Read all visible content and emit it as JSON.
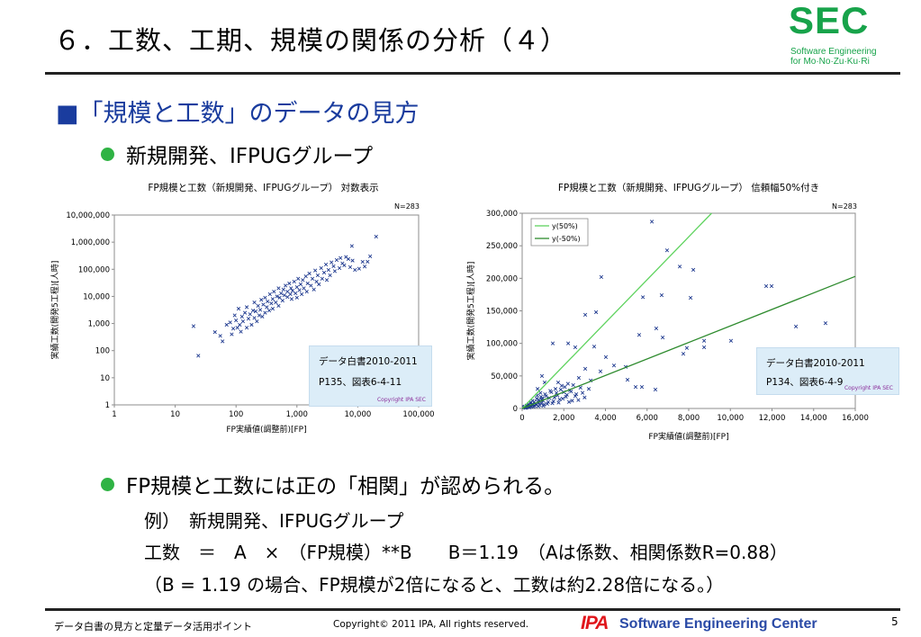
{
  "slide": {
    "title": "６．工数、工期、規模の関係の分析（４）",
    "logo": {
      "main": "SEC",
      "line1": "Software Engineering",
      "line2": "for Mo·No·Zu·Ku·Ri"
    },
    "heading_marker": "■",
    "heading": "「規模と工数」のデータの見方",
    "bullet1": "新規開発、IFPUGグループ",
    "bullet2": "FP規模と工数には正の「相関」が認められる。",
    "lines": [
      "例）　新規開発、IFPUGグループ",
      "工数　＝　A　×　（FP規模）**B　　B＝1.19　（Aは係数、相関係数R=0.88）",
      "（B = 1.19 の場合、FP規模が2倍になると、工数は約2.28倍になる。）"
    ]
  },
  "footer": {
    "left": "データ白書の見方と定量データ活用ポイント",
    "copyright": "Copyright© 2011 IPA, All rights reserved.",
    "ipa": "IPA",
    "center": "Software Engineering Center",
    "page": "5"
  },
  "colors": {
    "heading": "#1a3c9e",
    "bullet": "#2fb344",
    "sec_logo": "#17a34a",
    "ipa_logo": "#e0161c",
    "footer_brand": "#2a4aa6",
    "marker": "#1f3a8f",
    "line_upper": "#5fd35f",
    "line_lower": "#2e8b2e",
    "note_box": "#dcedf8"
  },
  "chart_data": [
    {
      "type": "scatter",
      "title": "FP規模と工数（新規開発、IFPUGグループ） 対数表示",
      "xlabel": "FP実績値(調整前)[FP]",
      "ylabel": "実績工数(開発5工程)[人時]",
      "annotation": "N=283",
      "x_scale": "log",
      "y_scale": "log",
      "xlim": [
        1,
        100000
      ],
      "ylim": [
        1,
        10000000
      ],
      "grid": false,
      "x_tick_labels": [
        "1",
        "10",
        "100",
        "1,000",
        "10,000",
        "100,000"
      ],
      "y_tick_labels": [
        "1",
        "10",
        "100",
        "1,000",
        "10,000",
        "100,000",
        "1,000,000",
        "10,000,000"
      ],
      "note": {
        "source": "データ白書2010-2011",
        "ref": "P135、図表6-4-11",
        "copyright": "Copyright IPA SEC"
      },
      "series": [
        {
          "type": "scatter",
          "points": [
            [
              20,
              800
            ],
            [
              24,
              65
            ],
            [
              45,
              480
            ],
            [
              55,
              350
            ],
            [
              60,
              220
            ],
            [
              70,
              900
            ],
            [
              80,
              1100
            ],
            [
              85,
              400
            ],
            [
              90,
              650
            ],
            [
              95,
              2000
            ],
            [
              100,
              1300
            ],
            [
              105,
              700
            ],
            [
              110,
              3500
            ],
            [
              115,
              900
            ],
            [
              120,
              500
            ],
            [
              125,
              1800
            ],
            [
              130,
              1200
            ],
            [
              140,
              2500
            ],
            [
              150,
              700
            ],
            [
              150,
              4000
            ],
            [
              160,
              1500
            ],
            [
              170,
              2200
            ],
            [
              180,
              900
            ],
            [
              190,
              3000
            ],
            [
              200,
              1600
            ],
            [
              200,
              6000
            ],
            [
              210,
              2800
            ],
            [
              220,
              1200
            ],
            [
              230,
              4500
            ],
            [
              240,
              2000
            ],
            [
              250,
              3200
            ],
            [
              260,
              7500
            ],
            [
              270,
              1800
            ],
            [
              280,
              5000
            ],
            [
              300,
              2500
            ],
            [
              300,
              9000
            ],
            [
              320,
              4000
            ],
            [
              330,
              6500
            ],
            [
              350,
              3000
            ],
            [
              360,
              12000
            ],
            [
              380,
              5500
            ],
            [
              400,
              8000
            ],
            [
              400,
              3500
            ],
            [
              420,
              15000
            ],
            [
              450,
              6000
            ],
            [
              470,
              10000
            ],
            [
              500,
              4500
            ],
            [
              500,
              20000
            ],
            [
              520,
              9000
            ],
            [
              550,
              13000
            ],
            [
              580,
              7000
            ],
            [
              600,
              18000
            ],
            [
              620,
              11000
            ],
            [
              650,
              25000
            ],
            [
              700,
              9500
            ],
            [
              700,
              15000
            ],
            [
              750,
              30000
            ],
            [
              780,
              12000
            ],
            [
              800,
              20000
            ],
            [
              820,
              8000
            ],
            [
              850,
              16000
            ],
            [
              900,
              35000
            ],
            [
              950,
              13000
            ],
            [
              1000,
              22000
            ],
            [
              1000,
              9000
            ],
            [
              1050,
              45000
            ],
            [
              1100,
              17000
            ],
            [
              1150,
              28000
            ],
            [
              1200,
              12000
            ],
            [
              1250,
              40000
            ],
            [
              1300,
              20000
            ],
            [
              1400,
              55000
            ],
            [
              1450,
              15000
            ],
            [
              1500,
              30000
            ],
            [
              1600,
              70000
            ],
            [
              1700,
              25000
            ],
            [
              1800,
              45000
            ],
            [
              1900,
              18000
            ],
            [
              2000,
              90000
            ],
            [
              2100,
              35000
            ],
            [
              2200,
              60000
            ],
            [
              2300,
              28000
            ],
            [
              2500,
              110000
            ],
            [
              2600,
              45000
            ],
            [
              2800,
              75000
            ],
            [
              3000,
              150000
            ],
            [
              3100,
              40000
            ],
            [
              3300,
              95000
            ],
            [
              3500,
              60000
            ],
            [
              3700,
              180000
            ],
            [
              4000,
              130000
            ],
            [
              4200,
              85000
            ],
            [
              4500,
              220000
            ],
            [
              5000,
              110000
            ],
            [
              5200,
              260000
            ],
            [
              5600,
              165000
            ],
            [
              6000,
              140000
            ],
            [
              6400,
              285000
            ],
            [
              7000,
              240000
            ],
            [
              7500,
              120000
            ],
            [
              8000,
              720000
            ],
            [
              8200,
              210000
            ],
            [
              9000,
              95000
            ],
            [
              10500,
              105000
            ],
            [
              12000,
              188000
            ],
            [
              13000,
              126000
            ],
            [
              14500,
              190000
            ],
            [
              16000,
              300000
            ],
            [
              20000,
              1600000
            ]
          ]
        }
      ]
    },
    {
      "type": "scatter",
      "title": "FP規模と工数（新規開発、IFPUGグループ） 信頼幅50%付き",
      "xlabel": "FP実績値(調整前)[FP]",
      "ylabel": "実績工数(開発5工程)[人時]",
      "annotation": "N=283",
      "x_scale": "linear",
      "y_scale": "linear",
      "xlim": [
        0,
        16000
      ],
      "ylim": [
        0,
        300000
      ],
      "grid": false,
      "legend": "top-left",
      "x_tick_labels": [
        "0",
        "2,000",
        "4,000",
        "6,000",
        "8,000",
        "10,000",
        "12,000",
        "14,000",
        "16,000"
      ],
      "y_tick_labels": [
        "0",
        "50,000",
        "100,000",
        "150,000",
        "200,000",
        "250,000",
        "300,000"
      ],
      "note": {
        "source": "データ白書2010-2011",
        "ref": "P134、図表6-4-9",
        "copyright": "Copyright IPA SEC"
      },
      "series": [
        {
          "type": "scatter",
          "points": [
            [
              6230,
              287000
            ],
            [
              6960,
              243000
            ],
            [
              7570,
              218000
            ],
            [
              8220,
              213000
            ],
            [
              3800,
              202000
            ],
            [
              5800,
              171000
            ],
            [
              6700,
              174000
            ],
            [
              8090,
              170000
            ],
            [
              11720,
              188000
            ],
            [
              11980,
              188000
            ],
            [
              3550,
              148000
            ],
            [
              3030,
              144000
            ],
            [
              13150,
              126000
            ],
            [
              14570,
              131000
            ],
            [
              6440,
              123000
            ],
            [
              5620,
              113000
            ],
            [
              6750,
              109000
            ],
            [
              10030,
              104000
            ],
            [
              8740,
              104000
            ],
            [
              7910,
              93000
            ],
            [
              7740,
              84000
            ],
            [
              8740,
              94000
            ],
            [
              1470,
              100000
            ],
            [
              2210,
              100000
            ],
            [
              2550,
              94000
            ],
            [
              3460,
              95000
            ],
            [
              4020,
              79000
            ],
            [
              3030,
              61000
            ],
            [
              4410,
              66000
            ],
            [
              4970,
              64000
            ],
            [
              5060,
              44000
            ],
            [
              5450,
              33000
            ],
            [
              5750,
              33000
            ],
            [
              6400,
              29000
            ],
            [
              3760,
              57000
            ],
            [
              2720,
              47000
            ],
            [
              3290,
              43000
            ],
            [
              1730,
              40000
            ],
            [
              950,
              50000
            ],
            [
              740,
              30000
            ],
            [
              1080,
              40000
            ],
            [
              100,
              2000
            ],
            [
              200,
              3500
            ],
            [
              300,
              5000
            ],
            [
              350,
              1500
            ],
            [
              400,
              8000
            ],
            [
              500,
              6000
            ],
            [
              500,
              12000
            ],
            [
              600,
              4000
            ],
            [
              700,
              15000
            ],
            [
              800,
              9000
            ],
            [
              900,
              18000
            ],
            [
              1000,
              12000
            ],
            [
              1100,
              22000
            ],
            [
              1200,
              7000
            ],
            [
              1300,
              16000
            ],
            [
              1400,
              25000
            ],
            [
              1500,
              11000
            ],
            [
              1600,
              30000
            ],
            [
              1700,
              20000
            ],
            [
              1800,
              14000
            ],
            [
              1900,
              35000
            ],
            [
              2000,
              25000
            ],
            [
              2100,
              18000
            ],
            [
              2200,
              38000
            ],
            [
              2300,
              28000
            ],
            [
              2400,
              12000
            ],
            [
              2600,
              22000
            ],
            [
              2800,
              32000
            ],
            [
              150,
              800
            ],
            [
              250,
              2500
            ],
            [
              450,
              3000
            ],
            [
              650,
              7000
            ],
            [
              750,
              10000
            ],
            [
              850,
              5000
            ],
            [
              950,
              14000
            ],
            [
              1050,
              6000
            ],
            [
              1150,
              19000
            ],
            [
              1250,
              10000
            ],
            [
              1350,
              27000
            ],
            [
              1450,
              8000
            ],
            [
              1550,
              17000
            ],
            [
              1650,
              24000
            ],
            [
              1750,
              9000
            ],
            [
              1850,
              29000
            ],
            [
              1950,
              15000
            ],
            [
              2050,
              33000
            ],
            [
              2150,
              21000
            ],
            [
              2250,
              10000
            ],
            [
              2350,
              26000
            ],
            [
              2450,
              36000
            ],
            [
              2550,
              19000
            ],
            [
              2700,
              13000
            ],
            [
              2900,
              24000
            ],
            [
              3000,
              17000
            ],
            [
              3200,
              30000
            ],
            [
              80,
              1500
            ],
            [
              120,
              3000
            ],
            [
              180,
              1000
            ],
            [
              220,
              4500
            ],
            [
              280,
              2000
            ],
            [
              320,
              6500
            ],
            [
              380,
              3500
            ],
            [
              420,
              9500
            ],
            [
              480,
              5000
            ],
            [
              550,
              2500
            ],
            [
              580,
              10000
            ],
            [
              680,
              5500
            ],
            [
              720,
              20000
            ],
            [
              780,
              3500
            ],
            [
              820,
              13000
            ],
            [
              880,
              24000
            ],
            [
              920,
              8000
            ],
            [
              980,
              16000
            ],
            [
              1020,
              4000
            ]
          ]
        },
        {
          "type": "line",
          "name": "y(50%)",
          "color_key": "line_upper",
          "points": [
            [
              0,
              0
            ],
            [
              9100,
              300000
            ]
          ]
        },
        {
          "type": "line",
          "name": "y(-50%)",
          "color_key": "line_lower",
          "points": [
            [
              0,
              0
            ],
            [
              16000,
              203000
            ]
          ]
        }
      ]
    }
  ]
}
